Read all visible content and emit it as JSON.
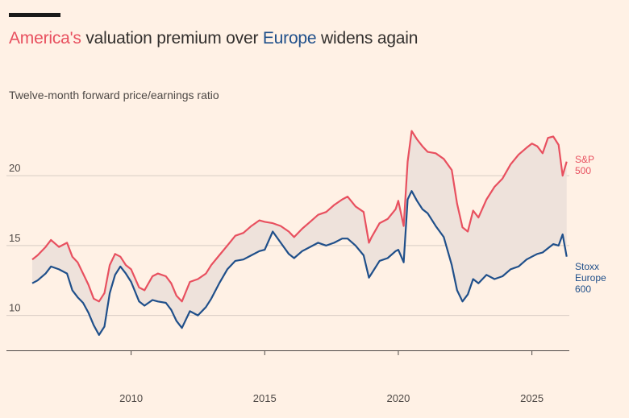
{
  "title": {
    "part1": "America's",
    "part2": " valuation premium over ",
    "part3": "Europe",
    "part4": " widens again"
  },
  "chart_data": {
    "type": "line",
    "title": "America's valuation premium over Europe widens again",
    "subtitle": "Twelve-month forward price/earnings ratio",
    "xlim": [
      2006.3,
      2026.4
    ],
    "ylim": [
      7.5,
      24.5
    ],
    "yticks": [
      10,
      15,
      20
    ],
    "xticks": [
      2010,
      2015,
      2020,
      2025
    ],
    "shade_between_series": true,
    "grid": "horizontal",
    "colors": {
      "sp500": "#e8505f",
      "stoxx": "#1f4f8a",
      "shade": "#eee2db",
      "grid": "#d8ccc3"
    },
    "series": [
      {
        "name": "S&P 500",
        "label_lines": [
          "S&P",
          "500"
        ],
        "x": [
          2006.3,
          2006.5,
          2006.8,
          2007.0,
          2007.3,
          2007.6,
          2007.8,
          2008.0,
          2008.2,
          2008.4,
          2008.6,
          2008.8,
          2009.0,
          2009.2,
          2009.4,
          2009.6,
          2009.8,
          2010.0,
          2010.3,
          2010.5,
          2010.8,
          2011.0,
          2011.3,
          2011.5,
          2011.7,
          2011.9,
          2012.2,
          2012.5,
          2012.8,
          2013.0,
          2013.3,
          2013.6,
          2013.9,
          2014.2,
          2014.5,
          2014.8,
          2015.0,
          2015.3,
          2015.6,
          2015.9,
          2016.1,
          2016.4,
          2016.7,
          2017.0,
          2017.3,
          2017.6,
          2017.9,
          2018.1,
          2018.4,
          2018.7,
          2018.9,
          2019.0,
          2019.3,
          2019.6,
          2019.9,
          2020.0,
          2020.2,
          2020.35,
          2020.5,
          2020.7,
          2020.9,
          2021.1,
          2021.4,
          2021.7,
          2022.0,
          2022.2,
          2022.4,
          2022.6,
          2022.8,
          2023.0,
          2023.3,
          2023.6,
          2023.9,
          2024.2,
          2024.5,
          2024.8,
          2025.0,
          2025.2,
          2025.4,
          2025.6,
          2025.8,
          2026.0,
          2026.15,
          2026.3
        ],
        "y": [
          14.0,
          14.3,
          14.9,
          15.4,
          14.9,
          15.2,
          14.2,
          13.8,
          13.0,
          12.2,
          11.2,
          11.0,
          11.6,
          13.6,
          14.4,
          14.2,
          13.6,
          13.3,
          12.0,
          11.8,
          12.8,
          13.0,
          12.8,
          12.3,
          11.4,
          11.0,
          12.4,
          12.6,
          13.0,
          13.6,
          14.3,
          15.0,
          15.7,
          15.9,
          16.4,
          16.8,
          16.7,
          16.6,
          16.4,
          16.0,
          15.6,
          16.2,
          16.7,
          17.2,
          17.4,
          17.9,
          18.3,
          18.5,
          17.8,
          17.4,
          15.2,
          15.6,
          16.6,
          16.9,
          17.6,
          18.2,
          16.4,
          21.0,
          23.2,
          22.6,
          22.1,
          21.7,
          21.6,
          21.2,
          20.4,
          18.0,
          16.3,
          16.0,
          17.5,
          17.0,
          18.3,
          19.2,
          19.8,
          20.8,
          21.5,
          22.0,
          22.3,
          22.1,
          21.6,
          22.7,
          22.8,
          22.2,
          20.0,
          21.0
        ]
      },
      {
        "name": "Stoxx Europe 600",
        "label_lines": [
          "Stoxx",
          "Europe",
          "600"
        ],
        "x": [
          2006.3,
          2006.5,
          2006.8,
          2007.0,
          2007.3,
          2007.6,
          2007.8,
          2008.0,
          2008.2,
          2008.4,
          2008.6,
          2008.8,
          2009.0,
          2009.2,
          2009.4,
          2009.6,
          2009.8,
          2010.0,
          2010.3,
          2010.5,
          2010.8,
          2011.0,
          2011.3,
          2011.5,
          2011.7,
          2011.9,
          2012.2,
          2012.5,
          2012.8,
          2013.0,
          2013.3,
          2013.6,
          2013.9,
          2014.2,
          2014.5,
          2014.8,
          2015.0,
          2015.3,
          2015.6,
          2015.9,
          2016.1,
          2016.4,
          2016.7,
          2017.0,
          2017.3,
          2017.6,
          2017.9,
          2018.1,
          2018.4,
          2018.7,
          2018.9,
          2019.0,
          2019.3,
          2019.6,
          2019.9,
          2020.0,
          2020.2,
          2020.35,
          2020.5,
          2020.7,
          2020.9,
          2021.1,
          2021.4,
          2021.7,
          2022.0,
          2022.2,
          2022.4,
          2022.6,
          2022.8,
          2023.0,
          2023.3,
          2023.6,
          2023.9,
          2024.2,
          2024.5,
          2024.8,
          2025.0,
          2025.2,
          2025.4,
          2025.6,
          2025.8,
          2026.0,
          2026.15,
          2026.3
        ],
        "y": [
          12.3,
          12.5,
          13.0,
          13.5,
          13.3,
          13.0,
          11.8,
          11.3,
          10.9,
          10.2,
          9.3,
          8.6,
          9.2,
          11.6,
          12.9,
          13.5,
          13.0,
          12.4,
          11.0,
          10.7,
          11.1,
          11.0,
          10.9,
          10.4,
          9.6,
          9.1,
          10.3,
          10.0,
          10.6,
          11.2,
          12.3,
          13.3,
          13.9,
          14.0,
          14.3,
          14.6,
          14.7,
          16.0,
          15.2,
          14.4,
          14.1,
          14.6,
          14.9,
          15.2,
          15.0,
          15.2,
          15.5,
          15.5,
          15.0,
          14.3,
          12.7,
          13.0,
          13.9,
          14.1,
          14.6,
          14.7,
          13.8,
          18.3,
          18.9,
          18.2,
          17.6,
          17.3,
          16.4,
          15.6,
          13.6,
          11.8,
          11.0,
          11.5,
          12.6,
          12.3,
          12.9,
          12.6,
          12.8,
          13.3,
          13.5,
          14.0,
          14.2,
          14.4,
          14.5,
          14.8,
          15.1,
          15.0,
          15.8,
          14.2
        ]
      }
    ]
  }
}
